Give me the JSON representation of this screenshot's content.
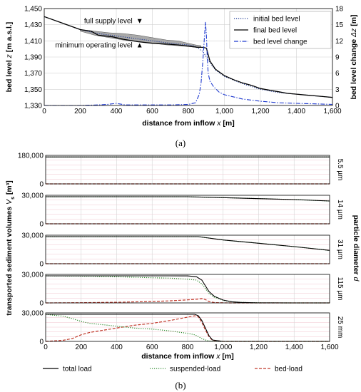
{
  "figure": {
    "caption_a": "(a)",
    "caption_b": "(b)"
  },
  "chart_data": [
    {
      "type": "line",
      "panel": "a",
      "xlabel_parts": [
        "distance from inflow ",
        "x",
        " [m]"
      ],
      "ylabel_parts": [
        "bed level ",
        "z",
        " [m a.s.l.]"
      ],
      "y2label_parts": [
        "bed level change ",
        "Δz",
        " [m]"
      ],
      "xlim": [
        0,
        1600
      ],
      "ylim": [
        1330,
        1450
      ],
      "y2lim": [
        0,
        18
      ],
      "xticks": [
        "0",
        "200",
        "400",
        "600",
        "800",
        "1,000",
        "1,200",
        "1,400",
        "1,600"
      ],
      "yticks": [
        "1,330",
        "1,350",
        "1,370",
        "1,390",
        "1,410",
        "1,430",
        "1,450"
      ],
      "y2ticks": [
        "0",
        "3",
        "6",
        "9",
        "12",
        "15",
        "18"
      ],
      "annotations": [
        {
          "text": "full supply level",
          "marker": "▼",
          "x": 490,
          "y": 1432
        },
        {
          "text": "minimum operating level",
          "marker": "▲",
          "x": 490,
          "y": 1402
        }
      ],
      "legend_position": "top-right",
      "reservoir_band": {
        "x": [
          200,
          280,
          360,
          440,
          520,
          600,
          680,
          740,
          800,
          840,
          870
        ],
        "upper": [
          1424,
          1422,
          1420,
          1419,
          1417,
          1414,
          1411,
          1410,
          1407,
          1405,
          1404
        ],
        "lower": [
          1422,
          1417,
          1414,
          1411,
          1409,
          1407,
          1405,
          1404,
          1403,
          1402,
          1402
        ]
      },
      "series": [
        {
          "name": "initial bed level",
          "color": "#1f3a93",
          "style": "dotted",
          "axis": "left",
          "x": [
            0,
            100,
            200,
            300,
            400,
            500,
            600,
            700,
            800,
            830,
            860,
            880,
            900,
            920,
            950,
            1000,
            1100,
            1200,
            1300,
            1400,
            1500,
            1600
          ],
          "y": [
            1440,
            1432,
            1424,
            1419,
            1416,
            1413,
            1410,
            1407,
            1405,
            1404,
            1400,
            1397,
            1390,
            1383,
            1374,
            1366,
            1357,
            1350,
            1346,
            1344,
            1342,
            1340
          ]
        },
        {
          "name": "final bed level",
          "color": "#000000",
          "style": "solid",
          "axis": "left",
          "x": [
            0,
            100,
            200,
            260,
            300,
            380,
            440,
            520,
            600,
            680,
            740,
            780,
            820,
            850,
            880,
            900,
            920,
            950,
            1000,
            1050,
            1100,
            1150,
            1200,
            1250,
            1300,
            1350,
            1400,
            1450,
            1500,
            1550,
            1600
          ],
          "y": [
            1440,
            1432,
            1424,
            1422,
            1417,
            1415,
            1412,
            1409,
            1407,
            1406,
            1405,
            1404,
            1403,
            1402,
            1402,
            1401,
            1385,
            1375,
            1367,
            1362,
            1358,
            1355,
            1351,
            1349,
            1347,
            1345,
            1344,
            1343,
            1342,
            1341,
            1340
          ]
        },
        {
          "name": "bed level change",
          "color": "#1f3acf",
          "style": "dashdot",
          "axis": "right",
          "x": [
            0,
            100,
            200,
            300,
            350,
            400,
            450,
            500,
            600,
            700,
            800,
            840,
            860,
            870,
            880,
            890,
            895,
            900,
            905,
            910,
            920,
            940,
            970,
            1000,
            1100,
            1200,
            1300,
            1400,
            1500,
            1600
          ],
          "y": [
            0,
            0,
            0,
            0.1,
            0.2,
            0.4,
            0.1,
            0.1,
            0.1,
            0.1,
            0.2,
            0.5,
            2,
            4,
            8,
            13,
            15.5,
            13,
            9,
            6,
            4.5,
            3.5,
            2.5,
            2,
            1.2,
            0.8,
            0.5,
            0.4,
            0.3,
            0.2
          ]
        }
      ]
    },
    {
      "type": "line",
      "panel": "b",
      "xlabel_parts": [
        "distance from inflow ",
        "x",
        " [m]"
      ],
      "ylabel_parts": [
        "transported sediment volumes ",
        "V",
        "s",
        " [m³]"
      ],
      "y2label_parts": [
        "particle diameter ",
        "d"
      ],
      "xlim": [
        0,
        1600
      ],
      "xticks": [
        "0",
        "200",
        "400",
        "600",
        "800",
        "1,000",
        "1,200",
        "1,400",
        "1,600"
      ],
      "legend_position": "bottom",
      "legend": [
        {
          "name": "total load",
          "color": "#000000",
          "style": "solid"
        },
        {
          "name": "suspended-load",
          "color": "#2e8b2e",
          "style": "dotted"
        },
        {
          "name": "bed-load",
          "color": "#c0392b",
          "style": "dashed"
        }
      ],
      "subplots": [
        {
          "label": "5.5 µm",
          "ylim": [
            0,
            180000
          ],
          "yticks": [
            "0",
            "180,000"
          ],
          "x": [
            0,
            1600
          ],
          "total": [
            170000,
            170000
          ],
          "suspended": [
            170000,
            170000
          ],
          "bed": [
            0,
            0
          ]
        },
        {
          "label": "14 µm",
          "ylim": [
            0,
            30000
          ],
          "yticks": [
            "0",
            "30,000"
          ],
          "x": [
            0,
            800,
            1000,
            1200,
            1400,
            1600
          ],
          "total": [
            28500,
            28500,
            27500,
            26500,
            25500,
            24000
          ],
          "suspended": [
            28500,
            28500,
            27500,
            26500,
            25500,
            24000
          ],
          "bed": [
            0,
            0,
            0,
            0,
            0,
            0
          ]
        },
        {
          "label": "31 µm",
          "ylim": [
            0,
            30000
          ],
          "yticks": [
            "0",
            "30,000"
          ],
          "x": [
            0,
            860,
            1000,
            1200,
            1400,
            1600
          ],
          "total": [
            28500,
            28500,
            25000,
            21500,
            18000,
            14000
          ],
          "suspended": [
            28500,
            28500,
            25000,
            21500,
            18000,
            14000
          ],
          "bed": [
            0,
            0,
            0,
            0,
            0,
            0
          ]
        },
        {
          "label": "115 µm",
          "ylim": [
            0,
            30000
          ],
          "yticks": [
            "0",
            "30,000"
          ],
          "x": [
            0,
            200,
            400,
            600,
            700,
            800,
            850,
            880,
            900,
            920,
            950,
            1000,
            1050,
            1100,
            1200,
            1400,
            1600
          ],
          "total": [
            28500,
            28500,
            28500,
            28500,
            28500,
            28400,
            27500,
            24000,
            18000,
            12000,
            7000,
            3000,
            1200,
            500,
            100,
            0,
            0
          ],
          "suspended": [
            28500,
            28200,
            27500,
            26500,
            26000,
            25000,
            24000,
            20000,
            15000,
            10000,
            6000,
            2800,
            1100,
            500,
            100,
            0,
            0
          ],
          "bed": [
            0,
            200,
            700,
            1500,
            2200,
            3200,
            3800,
            4500,
            3500,
            1500,
            400,
            100,
            0,
            0,
            0,
            0,
            0
          ]
        },
        {
          "label": "25 mm",
          "ylim": [
            0,
            30000
          ],
          "yticks": [
            "0",
            "30,000"
          ],
          "x": [
            0,
            100,
            150,
            200,
            250,
            300,
            350,
            400,
            450,
            500,
            600,
            700,
            800,
            840,
            860,
            880,
            900,
            920,
            940,
            1000,
            1600
          ],
          "total": [
            28500,
            28500,
            28500,
            28500,
            28500,
            28500,
            28500,
            28500,
            28500,
            28500,
            28500,
            28500,
            28500,
            28500,
            27000,
            22000,
            14000,
            6000,
            1500,
            0,
            0
          ],
          "suspended": [
            28500,
            26500,
            24000,
            21000,
            19000,
            18000,
            17000,
            16000,
            15000,
            14000,
            13000,
            11000,
            8500,
            7000,
            5000,
            3000,
            1500,
            500,
            100,
            0,
            0
          ],
          "bed": [
            0,
            1200,
            3000,
            7000,
            9500,
            11000,
            12500,
            14000,
            15500,
            17000,
            19000,
            22000,
            25500,
            27000,
            26000,
            20000,
            12000,
            5000,
            1200,
            0,
            0
          ]
        }
      ]
    }
  ]
}
